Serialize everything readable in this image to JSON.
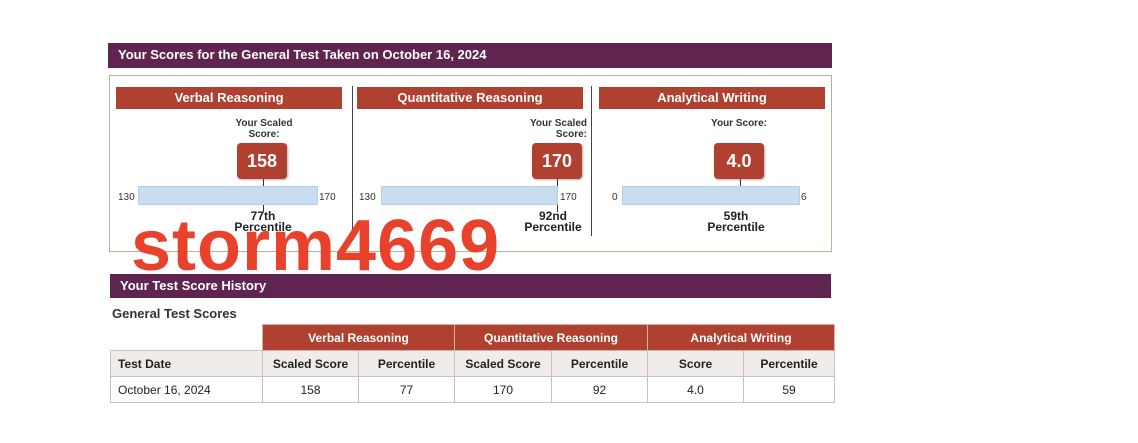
{
  "score_report": {
    "title": "Your Scores for the General Test Taken on October 16, 2024",
    "sections": [
      {
        "name": "Verbal Reasoning",
        "scaled_label": "Your Scaled Score:",
        "score": "158",
        "score_value": 158,
        "min": "130",
        "max": "170",
        "min_value": 130,
        "max_value": 170,
        "percentile_rank": "77th",
        "percentile_word": "Percentile"
      },
      {
        "name": "Quantitative Reasoning",
        "scaled_label": "Your Scaled Score:",
        "score": "170",
        "score_value": 170,
        "min": "130",
        "max": "170",
        "min_value": 130,
        "max_value": 170,
        "percentile_rank": "92nd",
        "percentile_word": "Percentile"
      },
      {
        "name": "Analytical Writing",
        "scaled_label": "Your Score:",
        "score": "4.0",
        "score_value": 4.0,
        "min": "0",
        "max": "6",
        "min_value": 0,
        "max_value": 6,
        "percentile_rank": "59th",
        "percentile_word": "Percentile"
      }
    ]
  },
  "watermark": "storm4669",
  "history": {
    "title": "Your Test Score History",
    "subtitle": "General Test Scores",
    "groups": [
      "Verbal Reasoning",
      "Quantitative Reasoning",
      "Analytical Writing"
    ],
    "columns": [
      "Test Date",
      "Scaled Score",
      "Percentile",
      "Scaled Score",
      "Percentile",
      "Score",
      "Percentile"
    ],
    "rows": [
      [
        "October 16, 2024",
        "158",
        "77",
        "170",
        "92",
        "4.0",
        "59"
      ]
    ]
  },
  "colors": {
    "header_purple": "#5f2450",
    "section_red": "#b0402f",
    "track_blue": "#c9ddf0",
    "watermark_red": "#e8412c"
  }
}
